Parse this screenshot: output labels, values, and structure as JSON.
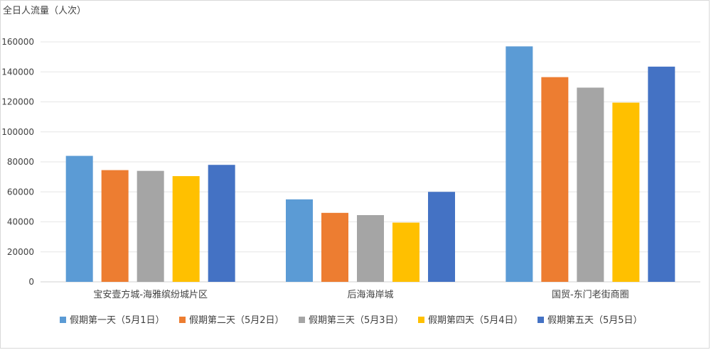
{
  "chart_data": {
    "type": "bar",
    "ylabel": "全日人流量（人次）",
    "ylim": [
      0,
      160000
    ],
    "yticks": [
      0,
      20000,
      40000,
      60000,
      80000,
      100000,
      120000,
      140000,
      160000
    ],
    "grid": true,
    "legend_position": "bottom",
    "categories": [
      "宝安壹方城-海雅缤纷城片区",
      "后海海岸城",
      "国贸-东门老街商圈"
    ],
    "series": [
      {
        "name": "假期第一天（5月1日）",
        "color": "#5b9bd5",
        "values": [
          84000,
          55000,
          157000
        ]
      },
      {
        "name": "假期第二天（5月2日）",
        "color": "#ed7d31",
        "values": [
          74500,
          46000,
          136500
        ]
      },
      {
        "name": "假期第三天（5月3日）",
        "color": "#a5a5a5",
        "values": [
          74000,
          44500,
          129500
        ]
      },
      {
        "name": "假期第四天（5月4日）",
        "color": "#ffc000",
        "values": [
          70500,
          39500,
          119500
        ]
      },
      {
        "name": "假期第五天（5月5日）",
        "color": "#4472c4",
        "values": [
          78000,
          60000,
          143500
        ]
      }
    ]
  }
}
